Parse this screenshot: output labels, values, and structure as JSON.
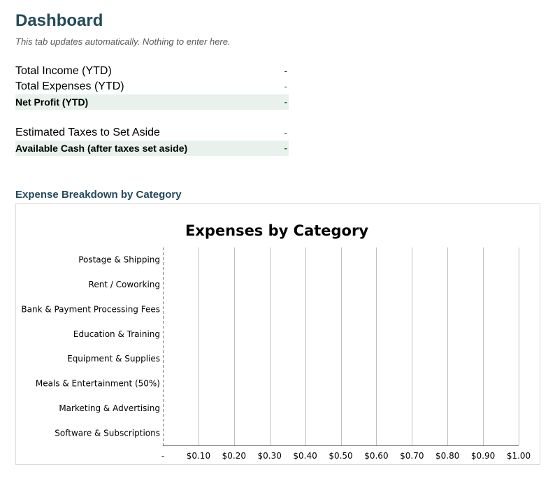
{
  "header": {
    "title": "Dashboard",
    "subtitle": "This tab updates automatically. Nothing to enter here."
  },
  "summary": {
    "total_income": {
      "label": "Total Income (YTD)",
      "value": "-"
    },
    "total_expenses": {
      "label": "Total Expenses (YTD)",
      "value": "-"
    },
    "net_profit": {
      "label": "Net Profit (YTD)",
      "value": "-"
    },
    "estimated_taxes": {
      "label": "Estimated Taxes to Set Aside",
      "value": "-"
    },
    "available_cash": {
      "label": "Available Cash (after taxes set aside)",
      "value": "-"
    }
  },
  "section": {
    "heading": "Expense Breakdown by Category"
  },
  "colors": {
    "heading": "#234a5b",
    "highlight_row": "#e8f1ec",
    "positive_value": "#1a7a1a",
    "gridline": "#bfbfbf"
  },
  "chart_data": {
    "type": "bar",
    "orientation": "horizontal",
    "title": "Expenses by Category",
    "categories": [
      "Postage & Shipping",
      "Rent / Coworking",
      "Bank & Payment Processing Fees",
      "Education & Training",
      "Equipment & Supplies",
      "Meals & Entertainment (50%)",
      "Marketing & Advertising",
      "Software & Subscriptions"
    ],
    "values": [
      0,
      0,
      0,
      0,
      0,
      0,
      0,
      0
    ],
    "xlim": [
      0,
      1
    ],
    "x_ticks": [
      0,
      0.1,
      0.2,
      0.3,
      0.4,
      0.5,
      0.6,
      0.7,
      0.8,
      0.9,
      1.0
    ],
    "x_tick_labels": [
      "-",
      "$0.10",
      "$0.20",
      "$0.30",
      "$0.40",
      "$0.50",
      "$0.60",
      "$0.70",
      "$0.80",
      "$0.90",
      "$1.00"
    ],
    "xlabel": "",
    "ylabel": "",
    "grid": true,
    "legend": "none"
  }
}
